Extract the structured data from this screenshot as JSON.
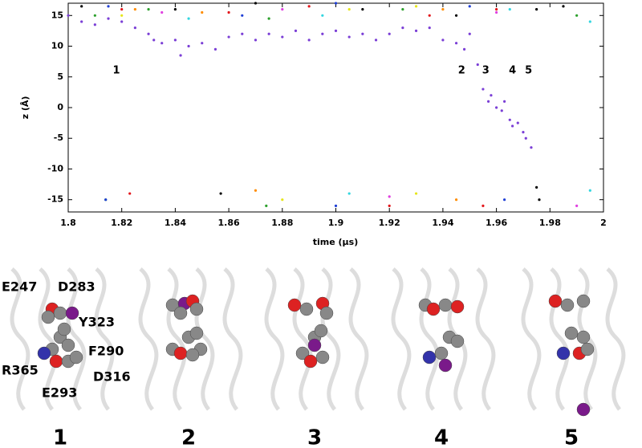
{
  "chart_data": {
    "type": "scatter",
    "x_label": "time (μs)",
    "y_label": "z (Å)",
    "xlim": [
      1.8,
      2
    ],
    "ylim": [
      -17,
      17
    ],
    "xticks": [
      1.8,
      1.82,
      1.84,
      1.86,
      1.88,
      1.9,
      1.92,
      1.94,
      1.96,
      1.98,
      2
    ],
    "yticks": [
      -15,
      -10,
      -5,
      0,
      5,
      10,
      15
    ],
    "annotations": [
      {
        "text": "1",
        "x": 1.818,
        "y": 6
      },
      {
        "text": "2",
        "x": 1.947,
        "y": 6
      },
      {
        "text": "3",
        "x": 1.956,
        "y": 6
      },
      {
        "text": "4",
        "x": 1.966,
        "y": 6
      },
      {
        "text": "5",
        "x": 1.972,
        "y": 6
      }
    ],
    "series": [
      {
        "color": "#7b3fd6",
        "x": [
          1.8,
          1.805,
          1.81,
          1.815,
          1.82,
          1.825,
          1.83,
          1.832,
          1.835,
          1.84,
          1.842,
          1.845,
          1.85,
          1.855,
          1.86,
          1.865,
          1.87,
          1.875,
          1.88,
          1.885,
          1.89,
          1.895,
          1.9,
          1.905,
          1.91,
          1.915,
          1.92,
          1.925,
          1.93,
          1.935,
          1.94,
          1.945,
          1.948,
          1.95,
          1.953,
          1.955,
          1.957,
          1.958,
          1.96,
          1.962,
          1.963,
          1.965,
          1.966,
          1.968,
          1.97,
          1.971,
          1.973
        ],
        "values": [
          15,
          14,
          13.5,
          14.5,
          14,
          13,
          12,
          11,
          10.5,
          11,
          8.5,
          10,
          10.5,
          9.5,
          11.5,
          12,
          11,
          12,
          11.5,
          12.5,
          11,
          12,
          12.5,
          11.5,
          12,
          11,
          12,
          13,
          12.5,
          13,
          11,
          10.5,
          9.5,
          12,
          7,
          3,
          1,
          2,
          0,
          -0.5,
          1,
          -2,
          -3,
          -2.5,
          -4,
          -5,
          -6.5
        ]
      },
      {
        "color": "#000000",
        "x": [
          1.805,
          1.84,
          1.87,
          1.91,
          1.945,
          1.975,
          1.985,
          1.857,
          1.975,
          1.976
        ],
        "values": [
          16.5,
          16,
          17,
          16,
          15,
          16,
          16.5,
          -14,
          -13,
          -15
        ]
      },
      {
        "color": "#e3161b",
        "x": [
          1.82,
          1.86,
          1.89,
          1.935,
          1.96,
          1.823,
          1.92,
          1.955
        ],
        "values": [
          16,
          15.5,
          16.5,
          15,
          16,
          -14,
          -16,
          -16
        ]
      },
      {
        "color": "#2ca02c",
        "x": [
          1.81,
          1.83,
          1.875,
          1.925,
          1.99,
          1.814,
          1.874
        ],
        "values": [
          15,
          16,
          14.5,
          16,
          15,
          -15,
          -16
        ]
      },
      {
        "color": "#1f3fd6",
        "x": [
          1.815,
          1.865,
          1.9,
          1.95,
          1.814,
          1.9,
          1.963
        ],
        "values": [
          16.5,
          15,
          17,
          16.5,
          -15,
          -16,
          -15
        ]
      },
      {
        "color": "#ff8c00",
        "x": [
          1.825,
          1.85,
          1.94,
          1.87,
          1.945
        ],
        "values": [
          16,
          15.5,
          16,
          -13.5,
          -15
        ]
      },
      {
        "color": "#33d6e0",
        "x": [
          1.845,
          1.895,
          1.965,
          1.995,
          1.905,
          1.995
        ],
        "values": [
          14.5,
          15,
          16,
          14,
          -14,
          -13.5
        ]
      },
      {
        "color": "#e6e61a",
        "x": [
          1.82,
          1.905,
          1.93,
          1.88,
          1.93
        ],
        "values": [
          15,
          16,
          16.5,
          -15,
          -14
        ]
      },
      {
        "color": "#e040e0",
        "x": [
          1.835,
          1.88,
          1.96,
          1.92,
          1.99
        ],
        "values": [
          15.5,
          16,
          15.5,
          -14.5,
          -16
        ]
      }
    ]
  },
  "panels": [
    {
      "label": "1",
      "residues": [
        "E247",
        "D283",
        "Y323",
        "F290",
        "R365",
        "E293",
        "D316"
      ]
    },
    {
      "label": "2"
    },
    {
      "label": "3"
    },
    {
      "label": "4"
    },
    {
      "label": "5"
    }
  ]
}
